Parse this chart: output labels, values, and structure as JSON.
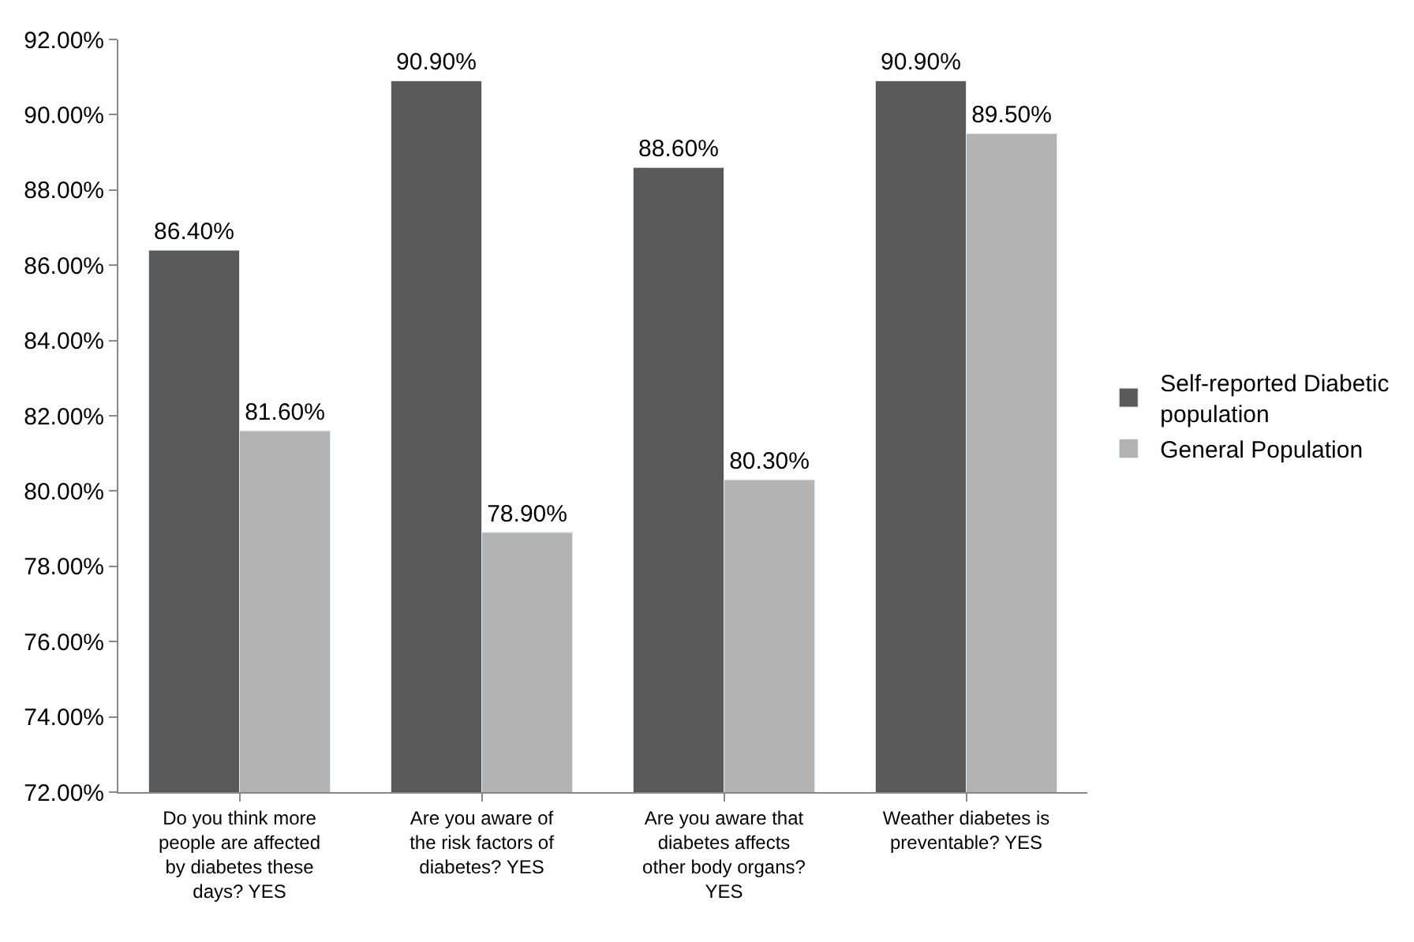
{
  "chart_data": {
    "type": "bar",
    "categories": [
      "Do you think more people are affected by diabetes these days? YES",
      "Are you aware of the risk factors of diabetes? YES",
      "Are you aware that diabetes affects other body organs? YES",
      "Weather diabetes is preventable? YES"
    ],
    "series": [
      {
        "name": "Self-reported Diabetic population",
        "color": "#595959",
        "values": [
          86.4,
          90.9,
          88.6,
          90.9
        ],
        "value_labels": [
          "86.40%",
          "90.90%",
          "88.60%",
          "90.90%"
        ]
      },
      {
        "name": "General Population",
        "color": "#b3b3b3",
        "values": [
          81.6,
          78.9,
          80.3,
          89.5
        ],
        "value_labels": [
          "81.60%",
          "78.90%",
          "80.30%",
          "89.50%"
        ]
      }
    ],
    "ylim": [
      72,
      92
    ],
    "yticks": [
      {
        "value": 72,
        "label": "72.00%"
      },
      {
        "value": 74,
        "label": "74.00%"
      },
      {
        "value": 76,
        "label": "76.00%"
      },
      {
        "value": 78,
        "label": "78.00%"
      },
      {
        "value": 80,
        "label": "80.00%"
      },
      {
        "value": 82,
        "label": "82.00%"
      },
      {
        "value": 84,
        "label": "84.00%"
      },
      {
        "value": 86,
        "label": "86.00%"
      },
      {
        "value": 88,
        "label": "88.00%"
      },
      {
        "value": 90,
        "label": "90.00%"
      },
      {
        "value": 92,
        "label": "92.00%"
      }
    ],
    "grid": false,
    "legend": "right"
  }
}
